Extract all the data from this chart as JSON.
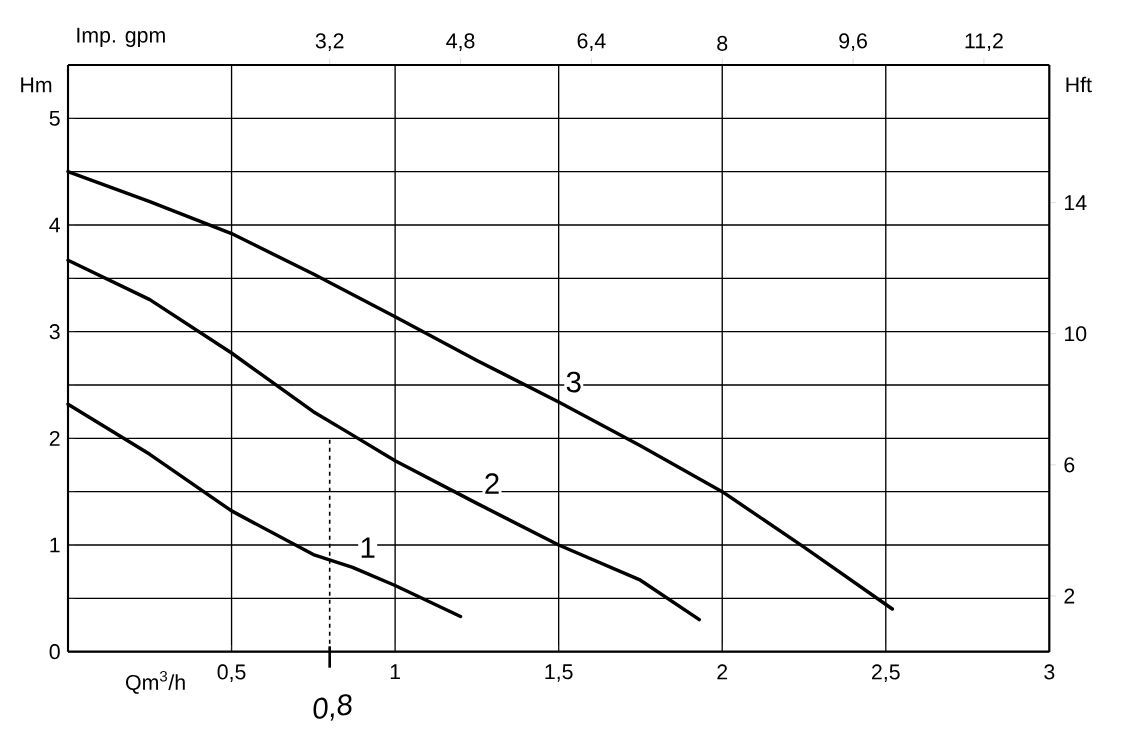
{
  "chart_data": {
    "type": "line",
    "xlabel": "Qm$^{3}$/h",
    "ylabel": "Hm",
    "x2label": "Imp. gpm",
    "y2label": "Hft",
    "xlim": [
      0,
      3
    ],
    "ylim": [
      0,
      5.5
    ],
    "x2lim": [
      0,
      12
    ],
    "y2lim": [
      0.3,
      18.2
    ],
    "xticks": [
      {
        "value": 0.5,
        "label": "0,5"
      },
      1,
      {
        "value": 1.5,
        "label": "1,5"
      },
      2,
      {
        "value": 2.5,
        "label": "2,5"
      },
      3
    ],
    "yticks": [
      0,
      {
        "value": 0.5,
        "label": null
      },
      1,
      {
        "value": 1.5,
        "label": null
      },
      2,
      {
        "value": 2.5,
        "label": null
      },
      3,
      {
        "value": 3.5,
        "label": null
      },
      4,
      {
        "value": 4.5,
        "label": null
      },
      5
    ],
    "x2ticks": [
      {
        "value": 3.2,
        "label": "3,2"
      },
      {
        "value": 4.8,
        "label": "4,8"
      },
      {
        "value": 6.4,
        "label": "6,4"
      },
      8,
      {
        "value": 9.6,
        "label": "9,6"
      },
      {
        "value": 11.2,
        "label": "11,2"
      }
    ],
    "y2ticks": [
      2,
      6,
      10,
      14
    ],
    "grid": true,
    "marker": "none",
    "line_style": "solid",
    "series": [
      {
        "name": "1",
        "color": "#000000",
        "x": [
          0,
          0.25,
          0.5,
          0.75,
          0.87,
          1.0,
          1.2
        ],
        "values": [
          2.32,
          1.85,
          1.32,
          0.91,
          0.79,
          0.62,
          0.33
        ]
      },
      {
        "name": "2",
        "color": "#000000",
        "x": [
          0,
          0.25,
          0.5,
          0.75,
          0.87,
          1.0,
          1.25,
          1.5,
          1.75,
          1.93
        ],
        "values": [
          3.67,
          3.3,
          2.8,
          2.25,
          2.03,
          1.79,
          1.39,
          1.0,
          0.67,
          0.3
        ]
      },
      {
        "name": "3",
        "color": "#000000",
        "x": [
          0,
          0.25,
          0.5,
          0.75,
          1.0,
          1.25,
          1.5,
          1.75,
          2.0,
          2.25,
          2.52
        ],
        "values": [
          4.5,
          4.22,
          3.92,
          3.54,
          3.14,
          2.73,
          2.34,
          1.93,
          1.5,
          0.98,
          0.4
        ]
      }
    ],
    "ref_lines": [
      {
        "axis": "x",
        "value": 0.8,
        "label": "0,8",
        "line_style": "dashed",
        "color": "#000000"
      }
    ]
  }
}
